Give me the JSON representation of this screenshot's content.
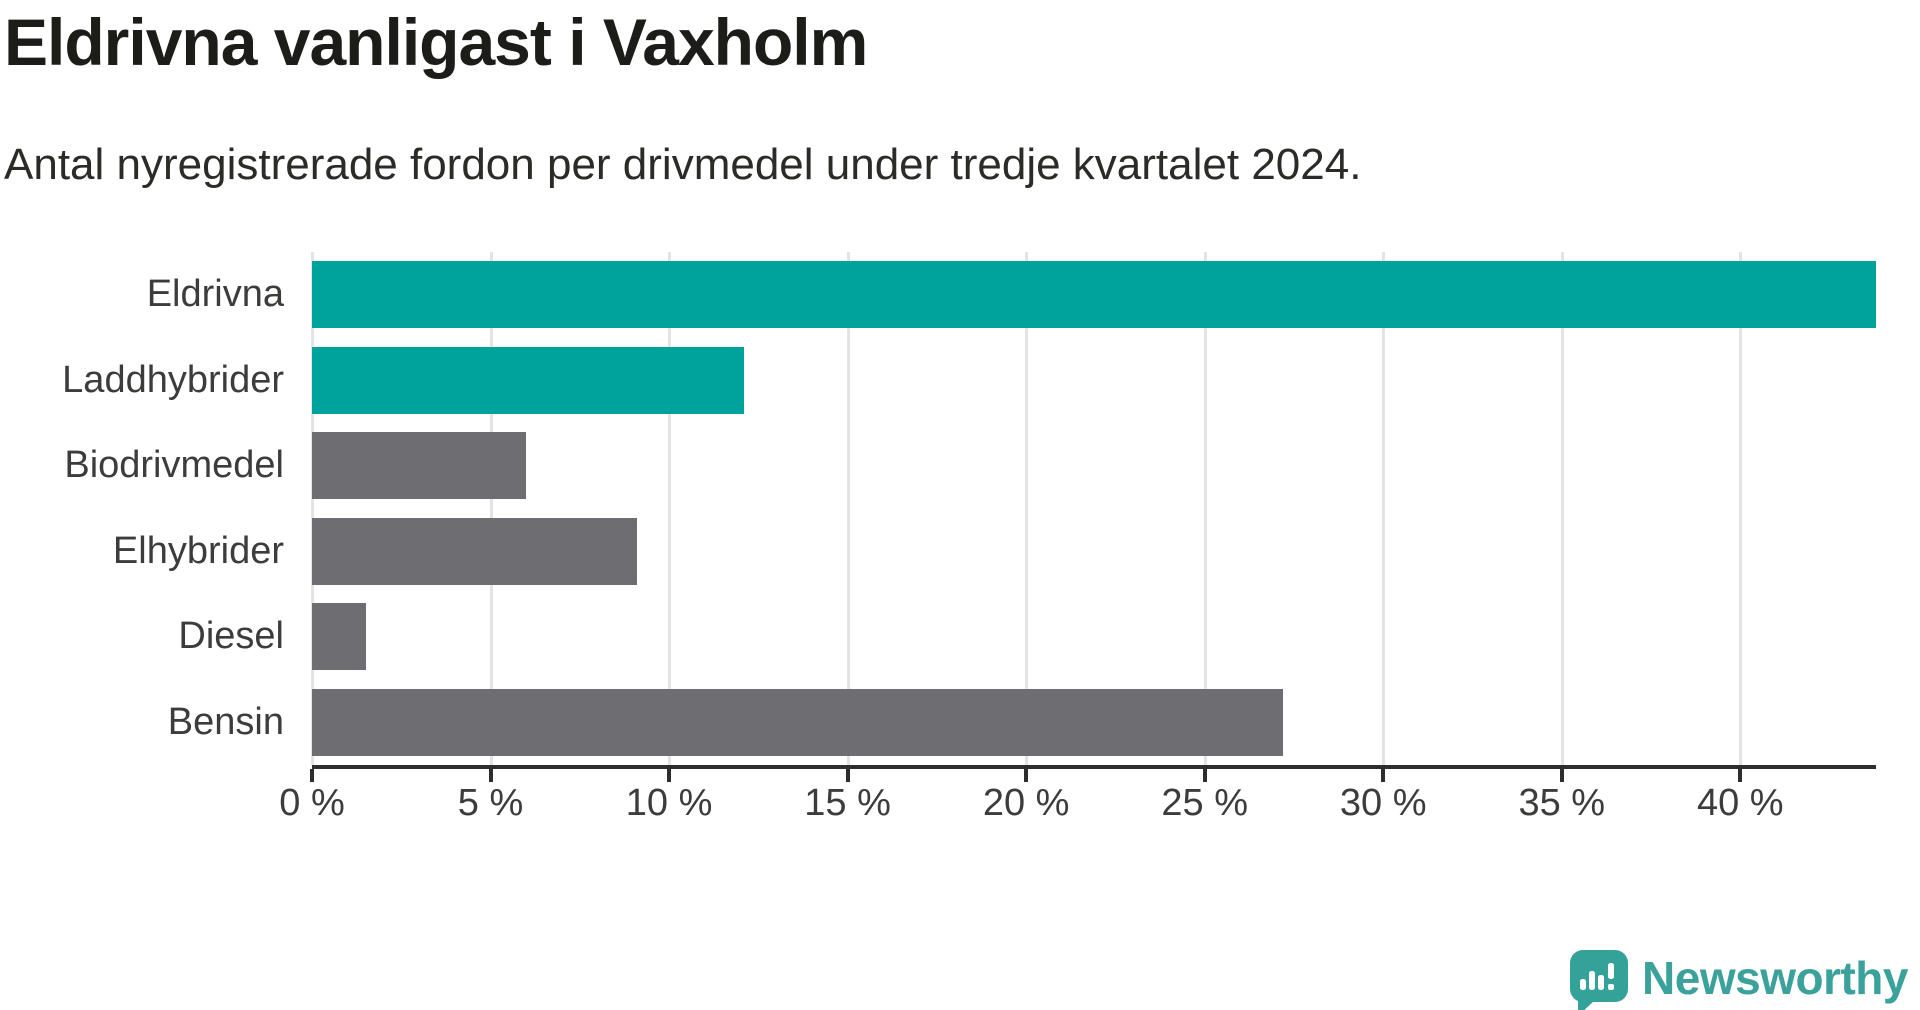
{
  "header": {
    "title": "Eldrivna vanligast i Vaxholm",
    "subtitle": "Antal nyregistrerade fordon per drivmedel under tredje kvartalet 2024."
  },
  "chart_data": {
    "type": "bar",
    "orientation": "horizontal",
    "title": "Eldrivna vanligast i Vaxholm",
    "subtitle": "Antal nyregistrerade fordon per drivmedel under tredje kvartalet 2024.",
    "categories": [
      "Eldrivna",
      "Laddhybrider",
      "Biodrivmedel",
      "Elhybrider",
      "Diesel",
      "Bensin"
    ],
    "values": [
      43.8,
      12.1,
      6.0,
      9.1,
      1.5,
      27.2
    ],
    "unit": "%",
    "bar_colors": [
      "#00a39b",
      "#00a39b",
      "#6d6d72",
      "#6d6d72",
      "#6d6d72",
      "#6d6d72"
    ],
    "xlabel": "",
    "ylabel": "",
    "xlim": [
      0,
      43.8
    ],
    "xticks": [
      0,
      5,
      10,
      15,
      20,
      25,
      30,
      35,
      40
    ],
    "xtick_labels": [
      "0 %",
      "5 %",
      "10 %",
      "15 %",
      "20 %",
      "25 %",
      "30 %",
      "35 %",
      "40 %"
    ],
    "grid": "vertical-only",
    "legend": "none"
  },
  "colors": {
    "accent_teal": "#00a39b",
    "neutral_gray": "#6d6d72",
    "axis": "#2e2e2e",
    "gridline": "#e3e3e3",
    "logo_teal": "#3aa29b"
  },
  "footer": {
    "brand": "Newsworthy",
    "logo_icon": "speech-bubble-bar-chart-icon"
  }
}
